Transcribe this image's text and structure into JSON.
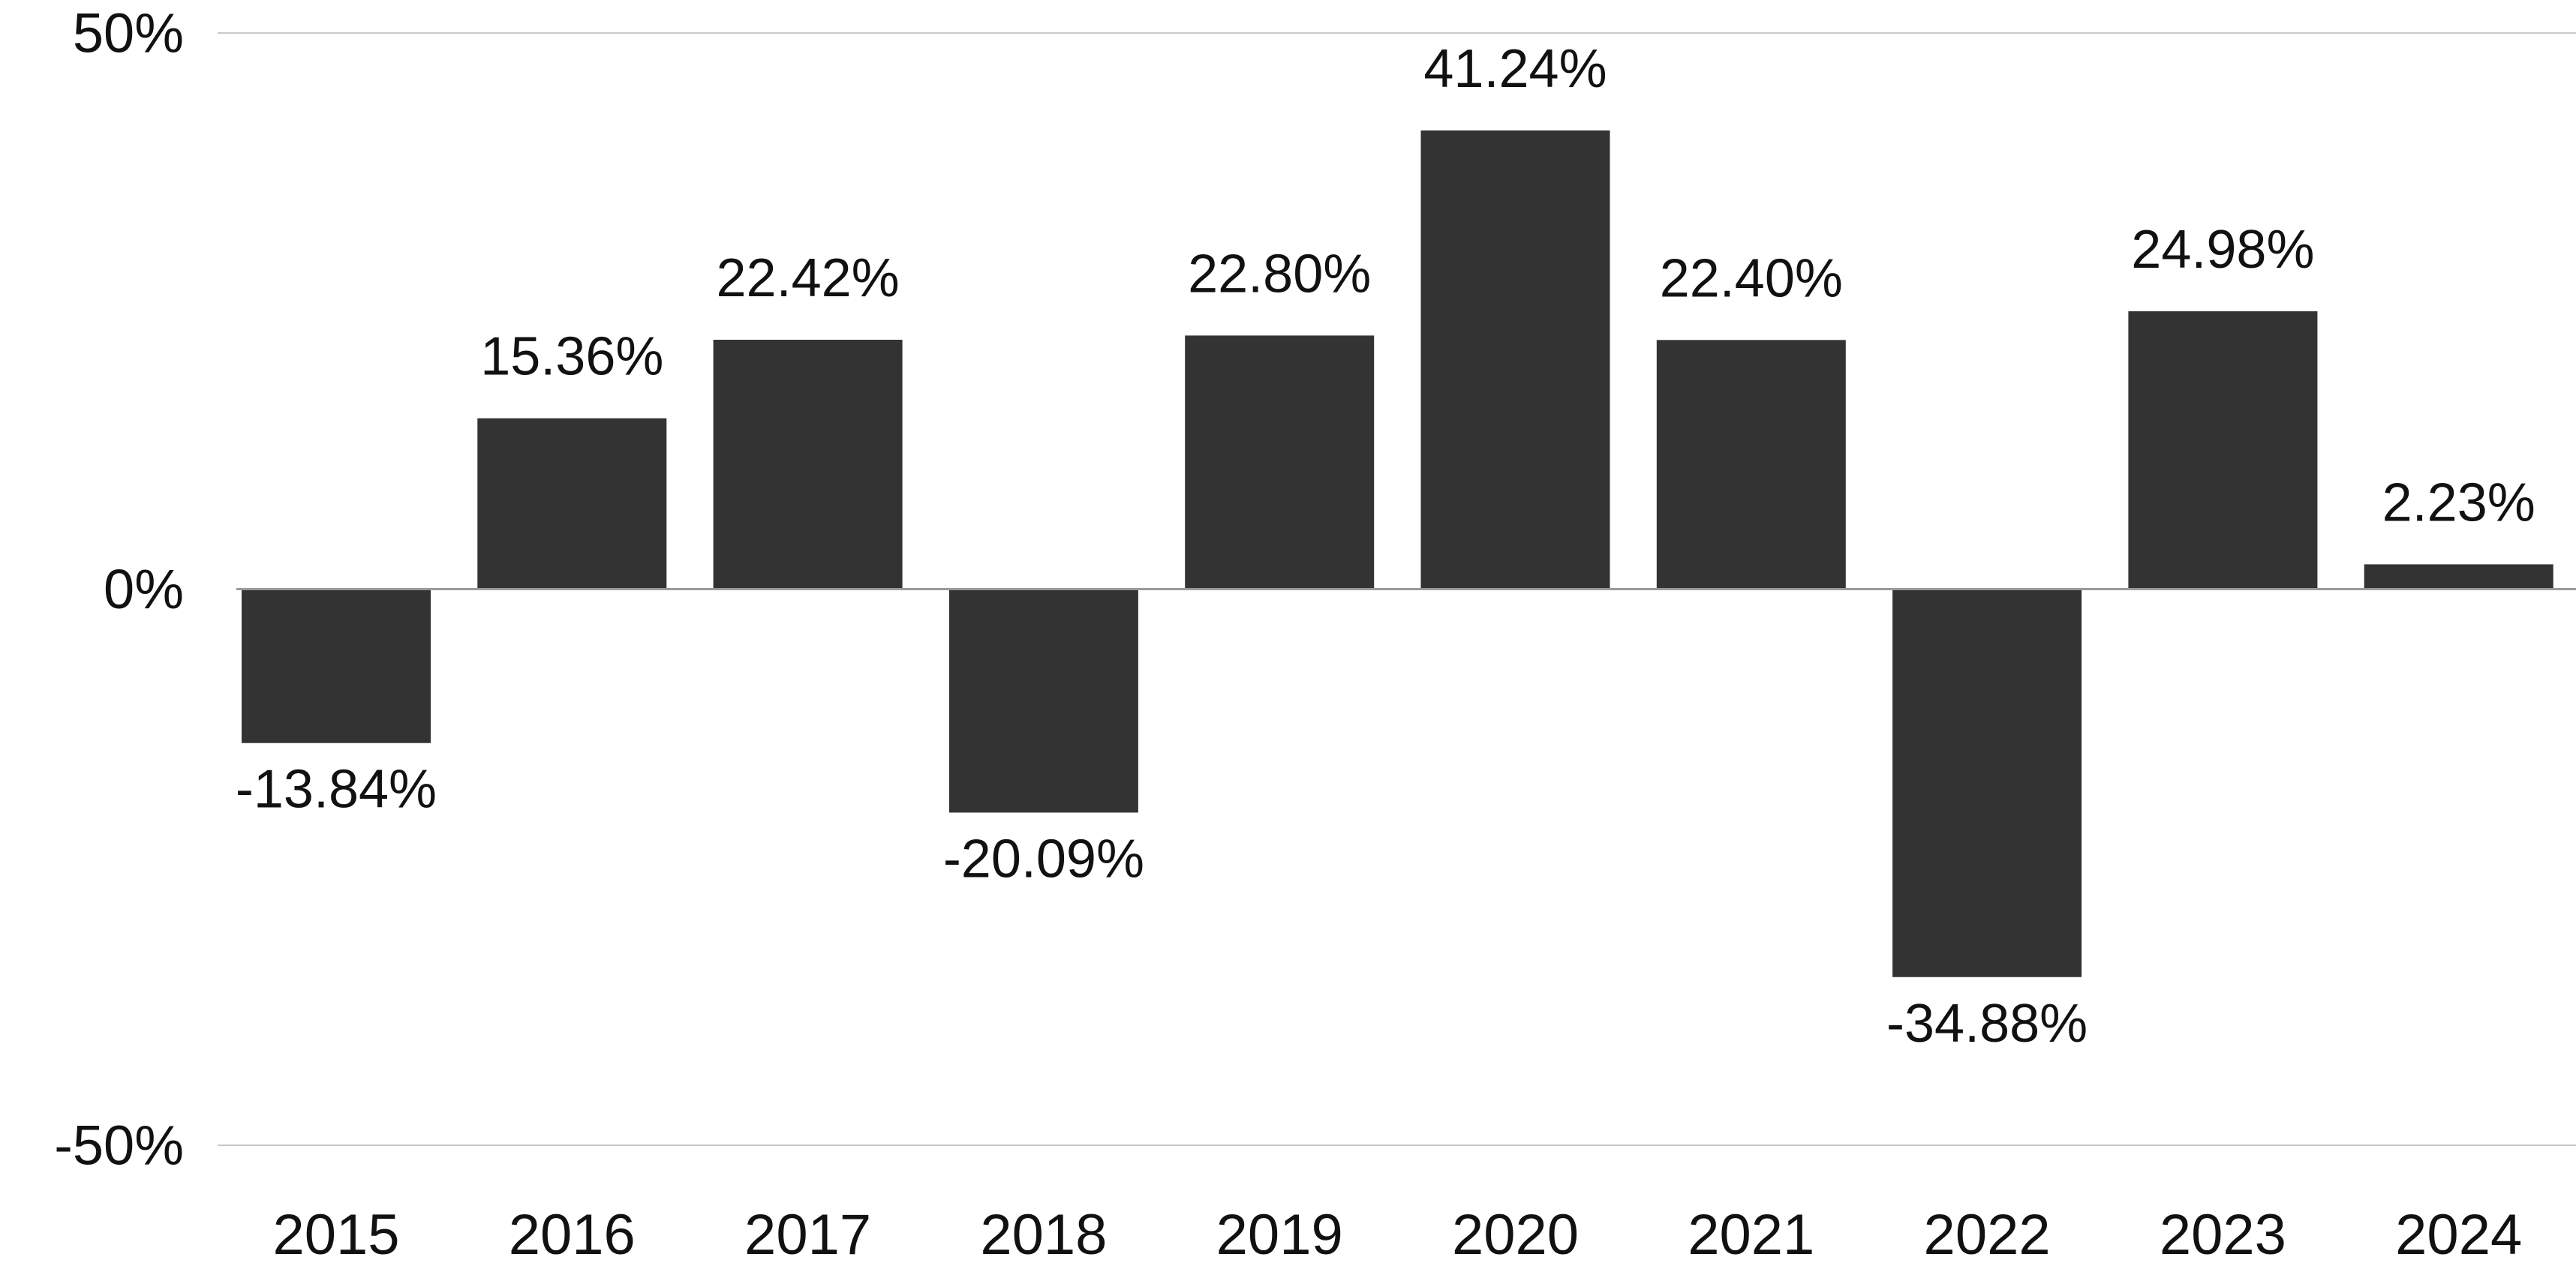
{
  "chart_data": {
    "type": "bar",
    "categories": [
      "2015",
      "2016",
      "2017",
      "2018",
      "2019",
      "2020",
      "2021",
      "2022",
      "2023",
      "2024"
    ],
    "values": [
      -13.84,
      15.36,
      22.42,
      -20.09,
      22.8,
      41.24,
      22.4,
      -34.88,
      24.98,
      2.23
    ],
    "data_labels": [
      "-13.84%",
      "15.36%",
      "22.42%",
      "-20.09%",
      "22.80%",
      "41.24%",
      "22.40%",
      "-34.88%",
      "24.98%",
      "2.23%"
    ],
    "ylim": [
      -50,
      50
    ],
    "yticks": [
      50,
      0,
      -50
    ],
    "ytick_labels": [
      "50%",
      "0%",
      "-50%"
    ],
    "grid": true,
    "bar_color": "#333333",
    "grid_color": "#c8c8c8",
    "axis_color": "#9a9a9a"
  }
}
